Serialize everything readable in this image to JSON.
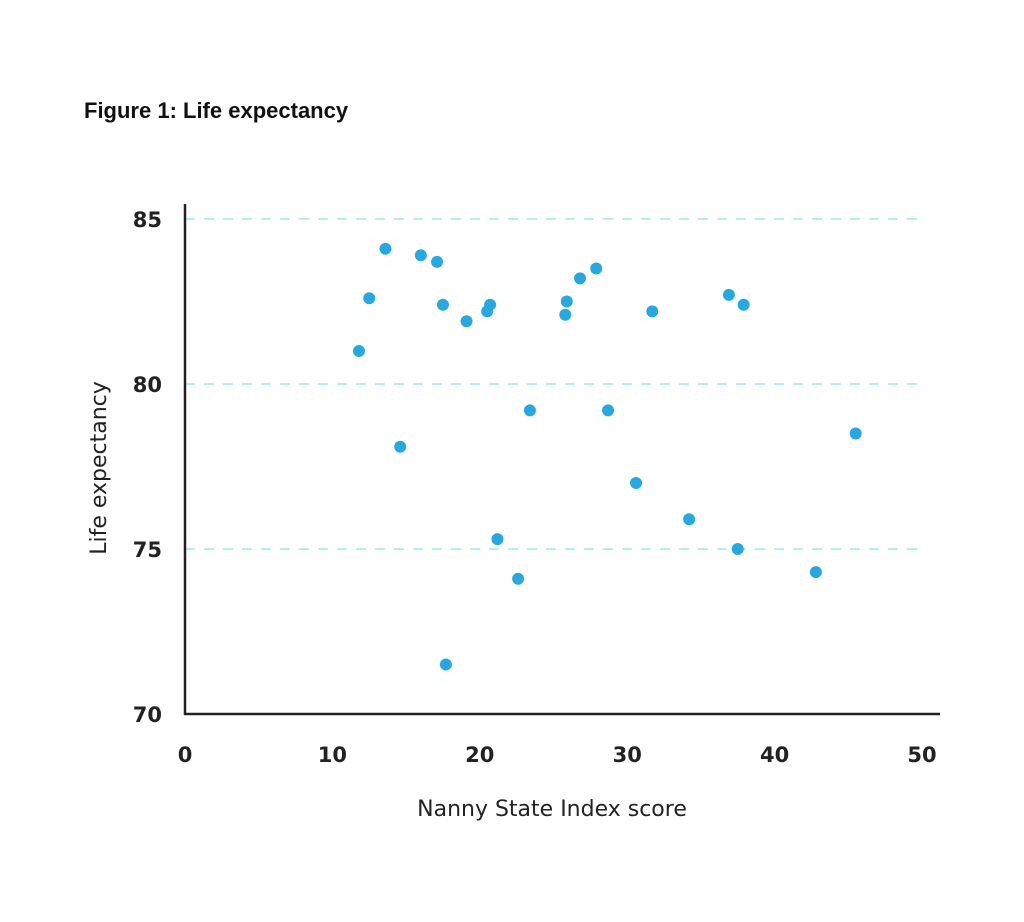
{
  "chart_data": {
    "type": "scatter",
    "title": "Figure 1: Life expectancy",
    "xlabel": "Nanny State Index score",
    "ylabel": "Life expectancy",
    "xlim": [
      0,
      50
    ],
    "ylim": [
      70,
      85
    ],
    "xticks": [
      0,
      10,
      20,
      30,
      40,
      50
    ],
    "yticks": [
      70,
      75,
      80,
      85
    ],
    "grid": "horizontal dashed at 75, 80, 85",
    "color": "#29a8e0",
    "gridColor": "#b6ecf6",
    "points": [
      [
        11.8,
        81.0
      ],
      [
        12.5,
        82.6
      ],
      [
        13.6,
        84.1
      ],
      [
        14.6,
        78.1
      ],
      [
        16.0,
        83.9
      ],
      [
        17.1,
        83.7
      ],
      [
        17.5,
        82.4
      ],
      [
        17.7,
        71.5
      ],
      [
        19.1,
        81.9
      ],
      [
        20.5,
        82.2
      ],
      [
        20.7,
        82.4
      ],
      [
        21.2,
        75.3
      ],
      [
        22.6,
        74.1
      ],
      [
        23.4,
        79.2
      ],
      [
        25.8,
        82.1
      ],
      [
        25.9,
        82.5
      ],
      [
        26.8,
        83.2
      ],
      [
        27.9,
        83.5
      ],
      [
        28.7,
        79.2
      ],
      [
        30.6,
        77.0
      ],
      [
        31.7,
        82.2
      ],
      [
        34.2,
        75.9
      ],
      [
        36.9,
        82.7
      ],
      [
        37.5,
        75.0
      ],
      [
        37.9,
        82.4
      ],
      [
        42.8,
        74.3
      ],
      [
        45.5,
        78.5
      ]
    ]
  }
}
